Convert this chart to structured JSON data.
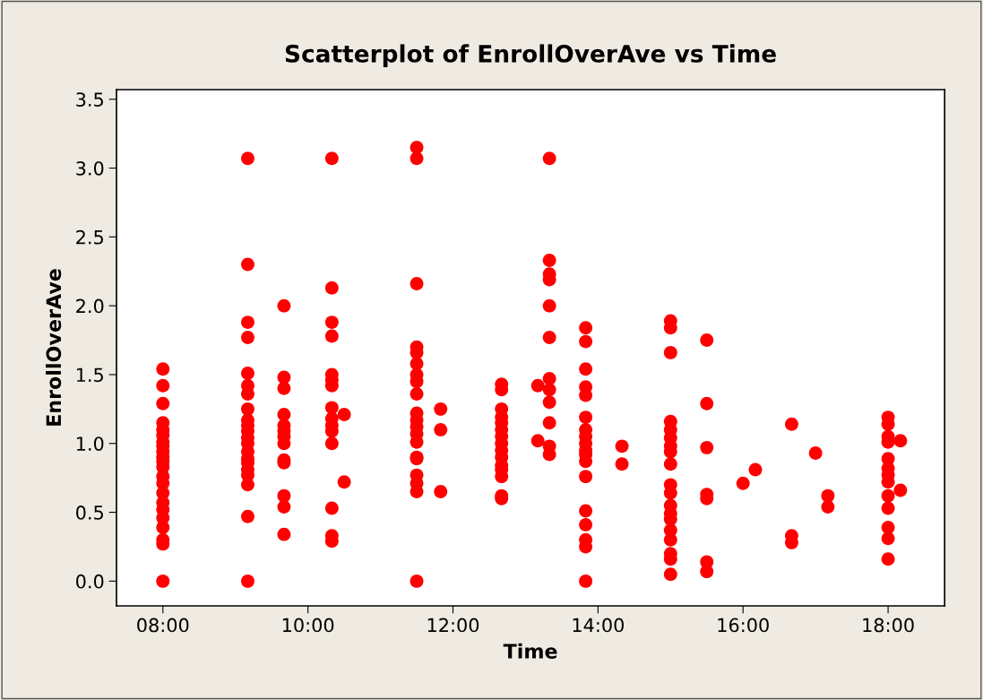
{
  "chart_data": {
    "type": "scatter",
    "title": "Scatterplot of EnrollOverAve vs Time",
    "xlabel": "Time",
    "ylabel": "EnrollOverAve",
    "xlim": [
      7.36,
      18.78
    ],
    "ylim": [
      -0.18,
      3.57
    ],
    "xticks": [
      {
        "value": 8,
        "label": "08:00"
      },
      {
        "value": 10,
        "label": "10:00"
      },
      {
        "value": 12,
        "label": "12:00"
      },
      {
        "value": 14,
        "label": "14:00"
      },
      {
        "value": 16,
        "label": "16:00"
      },
      {
        "value": 18,
        "label": "18:00"
      }
    ],
    "yticks": [
      {
        "value": 0,
        "label": "0.0"
      },
      {
        "value": 0.5,
        "label": "0.5"
      },
      {
        "value": 1,
        "label": "1.0"
      },
      {
        "value": 1.5,
        "label": "1.5"
      },
      {
        "value": 2,
        "label": "2.0"
      },
      {
        "value": 2.5,
        "label": "2.5"
      },
      {
        "value": 3,
        "label": "3.0"
      },
      {
        "value": 3.5,
        "label": "3.5"
      }
    ],
    "grid": false,
    "marker": "circle",
    "series": [
      {
        "color": "#ff0000",
        "x": [
          8,
          8,
          8,
          8,
          8,
          8,
          8,
          8,
          8,
          8,
          8,
          8,
          8,
          8,
          8,
          8,
          8,
          8,
          8,
          8,
          8,
          8,
          9.17,
          9.17,
          9.17,
          9.17,
          9.17,
          9.17,
          9.17,
          9.17,
          9.17,
          9.17,
          9.17,
          9.17,
          9.17,
          9.17,
          9.17,
          9.17,
          9.17,
          9.17,
          9.17,
          9.17,
          9.17,
          9.67,
          9.67,
          9.67,
          9.67,
          9.67,
          9.67,
          9.67,
          9.67,
          9.67,
          9.67,
          9.67,
          9.67,
          9.67,
          10.33,
          10.33,
          10.33,
          10.33,
          10.33,
          10.33,
          10.33,
          10.33,
          10.33,
          10.33,
          10.33,
          10.33,
          10.33,
          10.33,
          10.33,
          10.5,
          10.5,
          11.5,
          11.5,
          11.5,
          11.5,
          11.5,
          11.5,
          11.5,
          11.5,
          11.5,
          11.5,
          11.5,
          11.5,
          11.5,
          11.5,
          11.5,
          11.5,
          11.5,
          11.5,
          11.5,
          11.5,
          11.83,
          11.83,
          11.83,
          12.67,
          12.67,
          12.67,
          12.67,
          12.67,
          12.67,
          12.67,
          12.67,
          12.67,
          12.67,
          12.67,
          12.67,
          12.67,
          12.67,
          12.67,
          13.17,
          13.17,
          13.33,
          13.33,
          13.33,
          13.33,
          13.33,
          13.33,
          13.33,
          13.33,
          13.33,
          13.33,
          13.33,
          13.33,
          13.83,
          13.83,
          13.83,
          13.83,
          13.83,
          13.83,
          13.83,
          13.83,
          13.83,
          13.83,
          13.83,
          13.83,
          13.83,
          13.83,
          13.83,
          13.83,
          13.83,
          13.83,
          14.33,
          14.33,
          15,
          15,
          15,
          15,
          15,
          15,
          15,
          15,
          15,
          15,
          15,
          15,
          15,
          15,
          15,
          15,
          15,
          15,
          15,
          15.5,
          15.5,
          15.5,
          15.5,
          15.5,
          15.5,
          15.5,
          16,
          16.17,
          16.67,
          16.67,
          16.67,
          17,
          17.17,
          17.17,
          18,
          18,
          18,
          18,
          18,
          18,
          18,
          18,
          18,
          18,
          18,
          18,
          18,
          18.17,
          18.17
        ],
        "values": [
          1.54,
          1.42,
          1.29,
          1.15,
          1.1,
          1.06,
          1.01,
          0.98,
          0.94,
          0.9,
          0.87,
          0.83,
          0.76,
          0.71,
          0.64,
          0.57,
          0.52,
          0.46,
          0.39,
          0.3,
          0.27,
          0.0,
          3.07,
          2.3,
          1.88,
          1.77,
          1.51,
          1.42,
          1.36,
          1.25,
          1.17,
          1.13,
          1.09,
          1.04,
          1.0,
          0.94,
          0.89,
          0.86,
          0.81,
          0.77,
          0.7,
          0.47,
          0.0,
          2.0,
          1.48,
          1.4,
          1.21,
          1.13,
          1.09,
          1.05,
          1.0,
          0.88,
          0.86,
          0.62,
          0.54,
          0.34,
          3.07,
          2.13,
          1.88,
          1.78,
          1.5,
          1.46,
          1.42,
          1.26,
          1.18,
          1.13,
          1.09,
          1.0,
          0.53,
          0.33,
          0.29,
          1.21,
          0.72,
          3.15,
          3.07,
          2.16,
          1.7,
          1.66,
          1.58,
          1.5,
          1.45,
          1.36,
          1.22,
          1.17,
          1.12,
          1.07,
          1.01,
          0.9,
          0.89,
          0.77,
          0.71,
          0.65,
          0.0,
          1.25,
          1.1,
          0.65,
          1.43,
          1.39,
          1.25,
          1.19,
          1.15,
          1.1,
          1.05,
          1.0,
          0.95,
          0.9,
          0.84,
          0.81,
          0.76,
          0.62,
          0.6,
          1.42,
          1.02,
          3.07,
          2.33,
          2.23,
          2.19,
          2.0,
          1.77,
          1.47,
          1.39,
          1.3,
          1.15,
          0.98,
          0.92,
          1.84,
          1.74,
          1.54,
          1.41,
          1.35,
          1.19,
          1.1,
          1.05,
          1.0,
          0.95,
          0.92,
          0.87,
          0.76,
          0.51,
          0.41,
          0.3,
          0.25,
          0.0,
          0.98,
          0.85,
          1.89,
          1.84,
          1.66,
          1.16,
          1.1,
          1.04,
          0.98,
          0.94,
          0.85,
          0.7,
          0.64,
          0.55,
          0.49,
          0.45,
          0.37,
          0.3,
          0.2,
          0.16,
          0.05,
          1.75,
          1.29,
          0.97,
          0.63,
          0.6,
          0.14,
          0.07,
          0.71,
          0.81,
          1.14,
          0.33,
          0.28,
          0.93,
          0.62,
          0.54,
          1.19,
          1.14,
          1.05,
          1.01,
          0.89,
          0.82,
          0.77,
          0.72,
          0.62,
          0.53,
          0.39,
          0.31,
          0.16,
          1.02,
          0.66
        ]
      }
    ]
  }
}
